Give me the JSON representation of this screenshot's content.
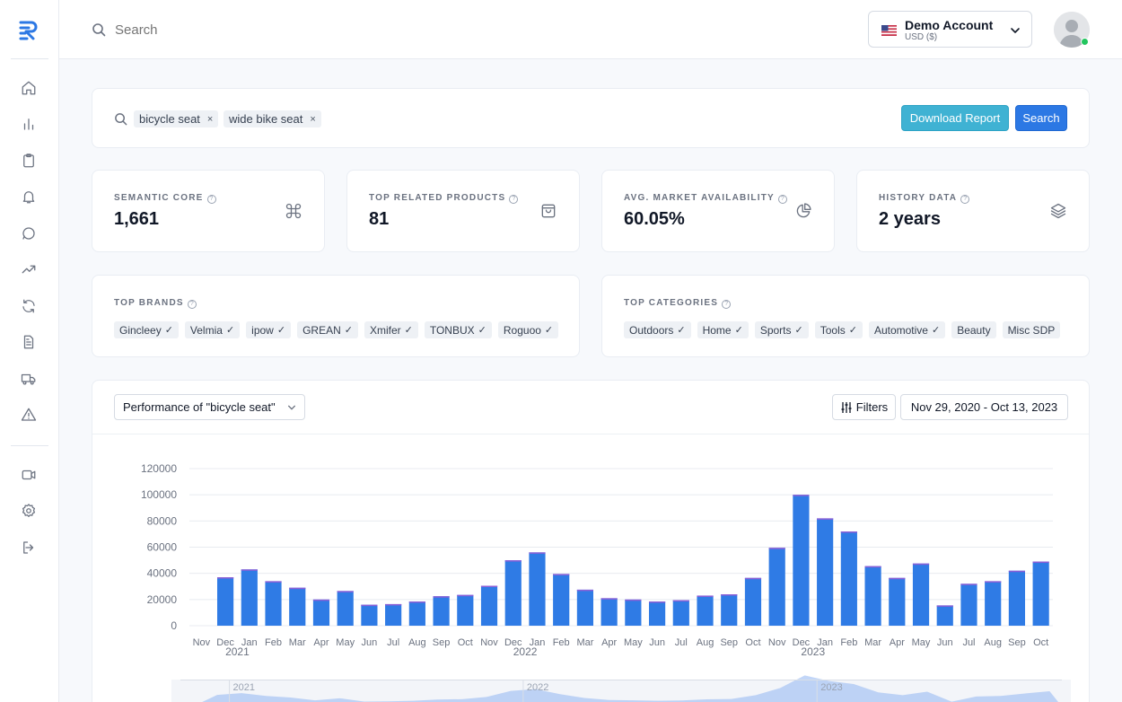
{
  "header": {
    "search_placeholder": "Search",
    "account": {
      "name": "Demo Account",
      "currency": "USD ($)",
      "flag": "us-flag-icon"
    },
    "status_color": "#22c55e"
  },
  "sidebar": {
    "items": [
      {
        "icon": "home-icon"
      },
      {
        "icon": "bar-chart-icon"
      },
      {
        "icon": "clipboard-icon"
      },
      {
        "icon": "bell-icon"
      },
      {
        "icon": "message-icon"
      },
      {
        "icon": "trending-up-icon"
      },
      {
        "icon": "refresh-icon"
      },
      {
        "icon": "document-icon"
      },
      {
        "icon": "truck-icon"
      },
      {
        "icon": "alert-icon"
      },
      {
        "icon": "video-icon"
      },
      {
        "icon": "settings-icon"
      },
      {
        "icon": "logout-icon"
      }
    ]
  },
  "keywords": {
    "chips": [
      "bicycle seat",
      "wide bike seat"
    ],
    "remove_glyph": "×",
    "download_label": "Download Report",
    "search_label": "Search"
  },
  "stats": [
    {
      "label": "SEMANTIC CORE",
      "value": "1,661",
      "icon": "command-icon"
    },
    {
      "label": "TOP RELATED PRODUCTS",
      "value": "81",
      "icon": "shopping-bag-icon"
    },
    {
      "label": "AVG. MARKET AVAILABILITY",
      "value": "60.05%",
      "icon": "pie-chart-icon"
    },
    {
      "label": "HISTORY DATA",
      "value": "2 years",
      "icon": "layers-icon"
    }
  ],
  "brands": {
    "title": "TOP BRANDS",
    "items": [
      "Gincleey",
      "Velmia",
      "ipow",
      "GREAN",
      "Xmifer",
      "TONBUX",
      "Roguoo"
    ]
  },
  "categories": {
    "title": "TOP CATEGORIES",
    "items": [
      {
        "label": "Outdoors",
        "checked": true
      },
      {
        "label": "Home",
        "checked": true
      },
      {
        "label": "Sports",
        "checked": true
      },
      {
        "label": "Tools",
        "checked": true
      },
      {
        "label": "Automotive",
        "checked": true
      },
      {
        "label": "Beauty",
        "checked": false
      },
      {
        "label": "Misc SDP",
        "checked": false
      }
    ]
  },
  "check_glyph": "✓",
  "performance": {
    "select_label": "Performance of \"bicycle seat\"",
    "filters_label": "Filters",
    "date_range": "Nov 29, 2020 - Oct 13, 2023"
  },
  "chart_data": {
    "type": "bar",
    "categories": [
      "Nov",
      "Dec",
      "Jan",
      "Feb",
      "Mar",
      "Apr",
      "May",
      "Jun",
      "Jul",
      "Aug",
      "Sep",
      "Oct",
      "Nov",
      "Dec",
      "Jan",
      "Feb",
      "Mar",
      "Apr",
      "May",
      "Jun",
      "Jul",
      "Aug",
      "Sep",
      "Oct",
      "Nov",
      "Dec",
      "Jan",
      "Feb",
      "Mar",
      "Apr",
      "May",
      "Jun",
      "Jul",
      "Aug",
      "Sep",
      "Oct"
    ],
    "values": [
      null,
      37000,
      43000,
      34000,
      29000,
      20000,
      26500,
      16000,
      16500,
      18500,
      22500,
      23500,
      30500,
      50000,
      56000,
      39500,
      27500,
      21000,
      20000,
      18500,
      19500,
      23000,
      24000,
      36500,
      59500,
      100000,
      82000,
      72000,
      45500,
      36500,
      47500,
      15500,
      32000,
      34000,
      42000,
      49000
    ],
    "year_labels": [
      {
        "label": "2021",
        "at_index": 2
      },
      {
        "label": "2022",
        "at_index": 14
      },
      {
        "label": "2023",
        "at_index": 26
      }
    ],
    "ylim": [
      0,
      120000
    ],
    "yticks": [
      0,
      20000,
      40000,
      60000,
      80000,
      100000,
      120000
    ],
    "grid": true,
    "bar_color": "#2f7be5",
    "bar_top_color": "#8c5fd6",
    "navigator": {
      "years": [
        "2021",
        "2022",
        "2023"
      ],
      "area_color": "#8fb4f2"
    }
  }
}
